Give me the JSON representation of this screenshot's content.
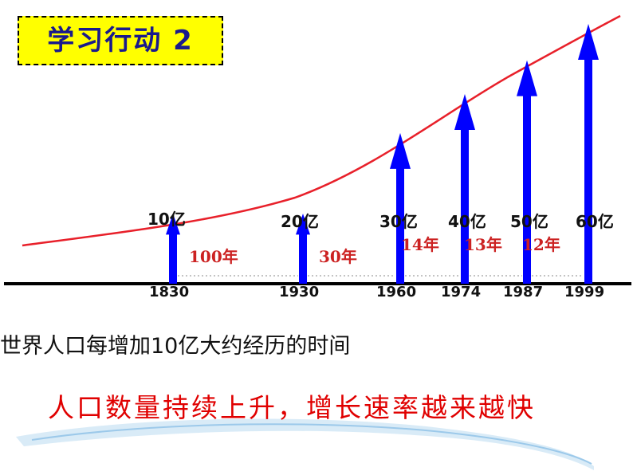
{
  "title": "学习行动 2",
  "milestones": [
    {
      "year": "1830",
      "population": "10亿",
      "level": 0.27
    },
    {
      "year": "1930",
      "population": "20亿",
      "level": 0.27
    },
    {
      "year": "1960",
      "population": "30亿",
      "level": 0.58
    },
    {
      "year": "1974",
      "population": "40亿",
      "level": 0.73
    },
    {
      "year": "1987",
      "population": "50亿",
      "level": 0.86
    },
    {
      "year": "1999",
      "population": "60亿",
      "level": 1.0
    }
  ],
  "intervals": [
    "100年",
    "30年",
    "14年",
    "13年",
    "12年"
  ],
  "caption": "世界人口每增加10亿大约经历的时间",
  "conclusion": "人口数量持续上升，增长速率越来越快",
  "colors": {
    "arrow": "#0000ff",
    "curve": "#e8202a",
    "interval_text": "#cc2222",
    "title_bg": "#ffff00",
    "conclusion": "#e00000"
  }
}
